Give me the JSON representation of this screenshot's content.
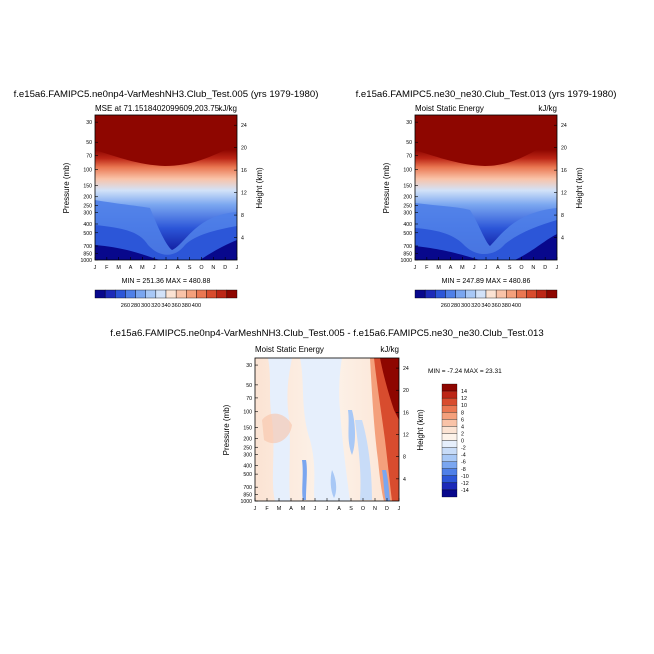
{
  "chart_data": [
    {
      "type": "heatmap",
      "title": "f.e15a6.FAMIPC5.ne0np4-VarMeshNH3.Club_Test.005 (yrs 1979-1980)",
      "subtitle_left": "MSE at 71.1518402099609,203.75",
      "subtitle_right": "kJ/kg",
      "ylabel": "Pressure (mb)",
      "ylabel_right": "Height (km)",
      "x_ticks": [
        "J",
        "F",
        "M",
        "A",
        "M",
        "J",
        "J",
        "A",
        "S",
        "O",
        "N",
        "D",
        "J"
      ],
      "pressure_ticks": [
        "30",
        "50",
        "70",
        "100",
        "150",
        "200",
        "250",
        "300",
        "400",
        "500",
        "700",
        "850",
        "1000"
      ],
      "height_ticks": [
        "4",
        "8",
        "12",
        "16",
        "20",
        "24"
      ],
      "stats": "MIN = 251.36 MAX = 480.88",
      "colorbar": {
        "orientation": "horizontal",
        "labels": [
          "260",
          "280",
          "300",
          "320",
          "340",
          "360",
          "380",
          "400"
        ],
        "colors": [
          "#08088c",
          "#1c2ab8",
          "#2c56d8",
          "#4f80e8",
          "#7aa6f0",
          "#a8c8f6",
          "#d2e2f8",
          "#fbe3d3",
          "#f9c3a8",
          "#f4a07c",
          "#ea7752",
          "#d84c2e",
          "#bc2616",
          "#8e0600"
        ]
      },
      "field": "annual-cycle"
    },
    {
      "type": "heatmap",
      "title": "f.e15a6.FAMIPC5.ne30_ne30.Club_Test.013 (yrs 1979-1980)",
      "subtitle_left": "Moist Static Energy",
      "subtitle_right": "kJ/kg",
      "ylabel": "Pressure (mb)",
      "ylabel_right": "Height (km)",
      "x_ticks": [
        "J",
        "F",
        "M",
        "A",
        "M",
        "J",
        "J",
        "A",
        "S",
        "O",
        "N",
        "D",
        "J"
      ],
      "pressure_ticks": [
        "30",
        "50",
        "70",
        "100",
        "150",
        "200",
        "250",
        "300",
        "400",
        "500",
        "700",
        "850",
        "1000"
      ],
      "height_ticks": [
        "4",
        "8",
        "12",
        "16",
        "20",
        "24"
      ],
      "stats": "MIN = 247.89 MAX = 480.86",
      "colorbar": {
        "orientation": "horizontal",
        "labels": [
          "260",
          "280",
          "300",
          "320",
          "340",
          "360",
          "380",
          "400"
        ],
        "colors": [
          "#08088c",
          "#1c2ab8",
          "#2c56d8",
          "#4f80e8",
          "#7aa6f0",
          "#a8c8f6",
          "#d2e2f8",
          "#fbe3d3",
          "#f9c3a8",
          "#f4a07c",
          "#ea7752",
          "#d84c2e",
          "#bc2616",
          "#8e0600"
        ]
      },
      "field": "annual-cycle"
    },
    {
      "type": "heatmap",
      "title": "f.e15a6.FAMIPC5.ne0np4-VarMeshNH3.Club_Test.005 - f.e15a6.FAMIPC5.ne30_ne30.Club_Test.013",
      "subtitle_left": "Moist Static Energy",
      "subtitle_right": "kJ/kg",
      "ylabel": "Pressure (mb)",
      "ylabel_right": "Height (km)",
      "x_ticks": [
        "J",
        "F",
        "M",
        "A",
        "M",
        "J",
        "J",
        "A",
        "S",
        "O",
        "N",
        "D",
        "J"
      ],
      "pressure_ticks": [
        "30",
        "50",
        "70",
        "100",
        "150",
        "200",
        "250",
        "300",
        "400",
        "500",
        "700",
        "850",
        "1000"
      ],
      "height_ticks": [
        "4",
        "8",
        "12",
        "16",
        "20",
        "24"
      ],
      "stats": "MIN = -7.24 MAX = 23.31",
      "colorbar": {
        "orientation": "vertical",
        "labels": [
          "14",
          "12",
          "10",
          "8",
          "6",
          "4",
          "2",
          "0",
          "-2",
          "-4",
          "-6",
          "-8",
          "-10",
          "-12",
          "-14"
        ],
        "colors": [
          "#8e0600",
          "#bc2616",
          "#d84c2e",
          "#ea7752",
          "#f4a07c",
          "#f9c3a8",
          "#fbe3d3",
          "#fdf3ea",
          "#e6effc",
          "#c8dcf8",
          "#a8c8f6",
          "#7aa6f0",
          "#4f80e8",
          "#2c56d8",
          "#1c2ab8",
          "#08088c"
        ]
      },
      "field": "difference"
    }
  ]
}
